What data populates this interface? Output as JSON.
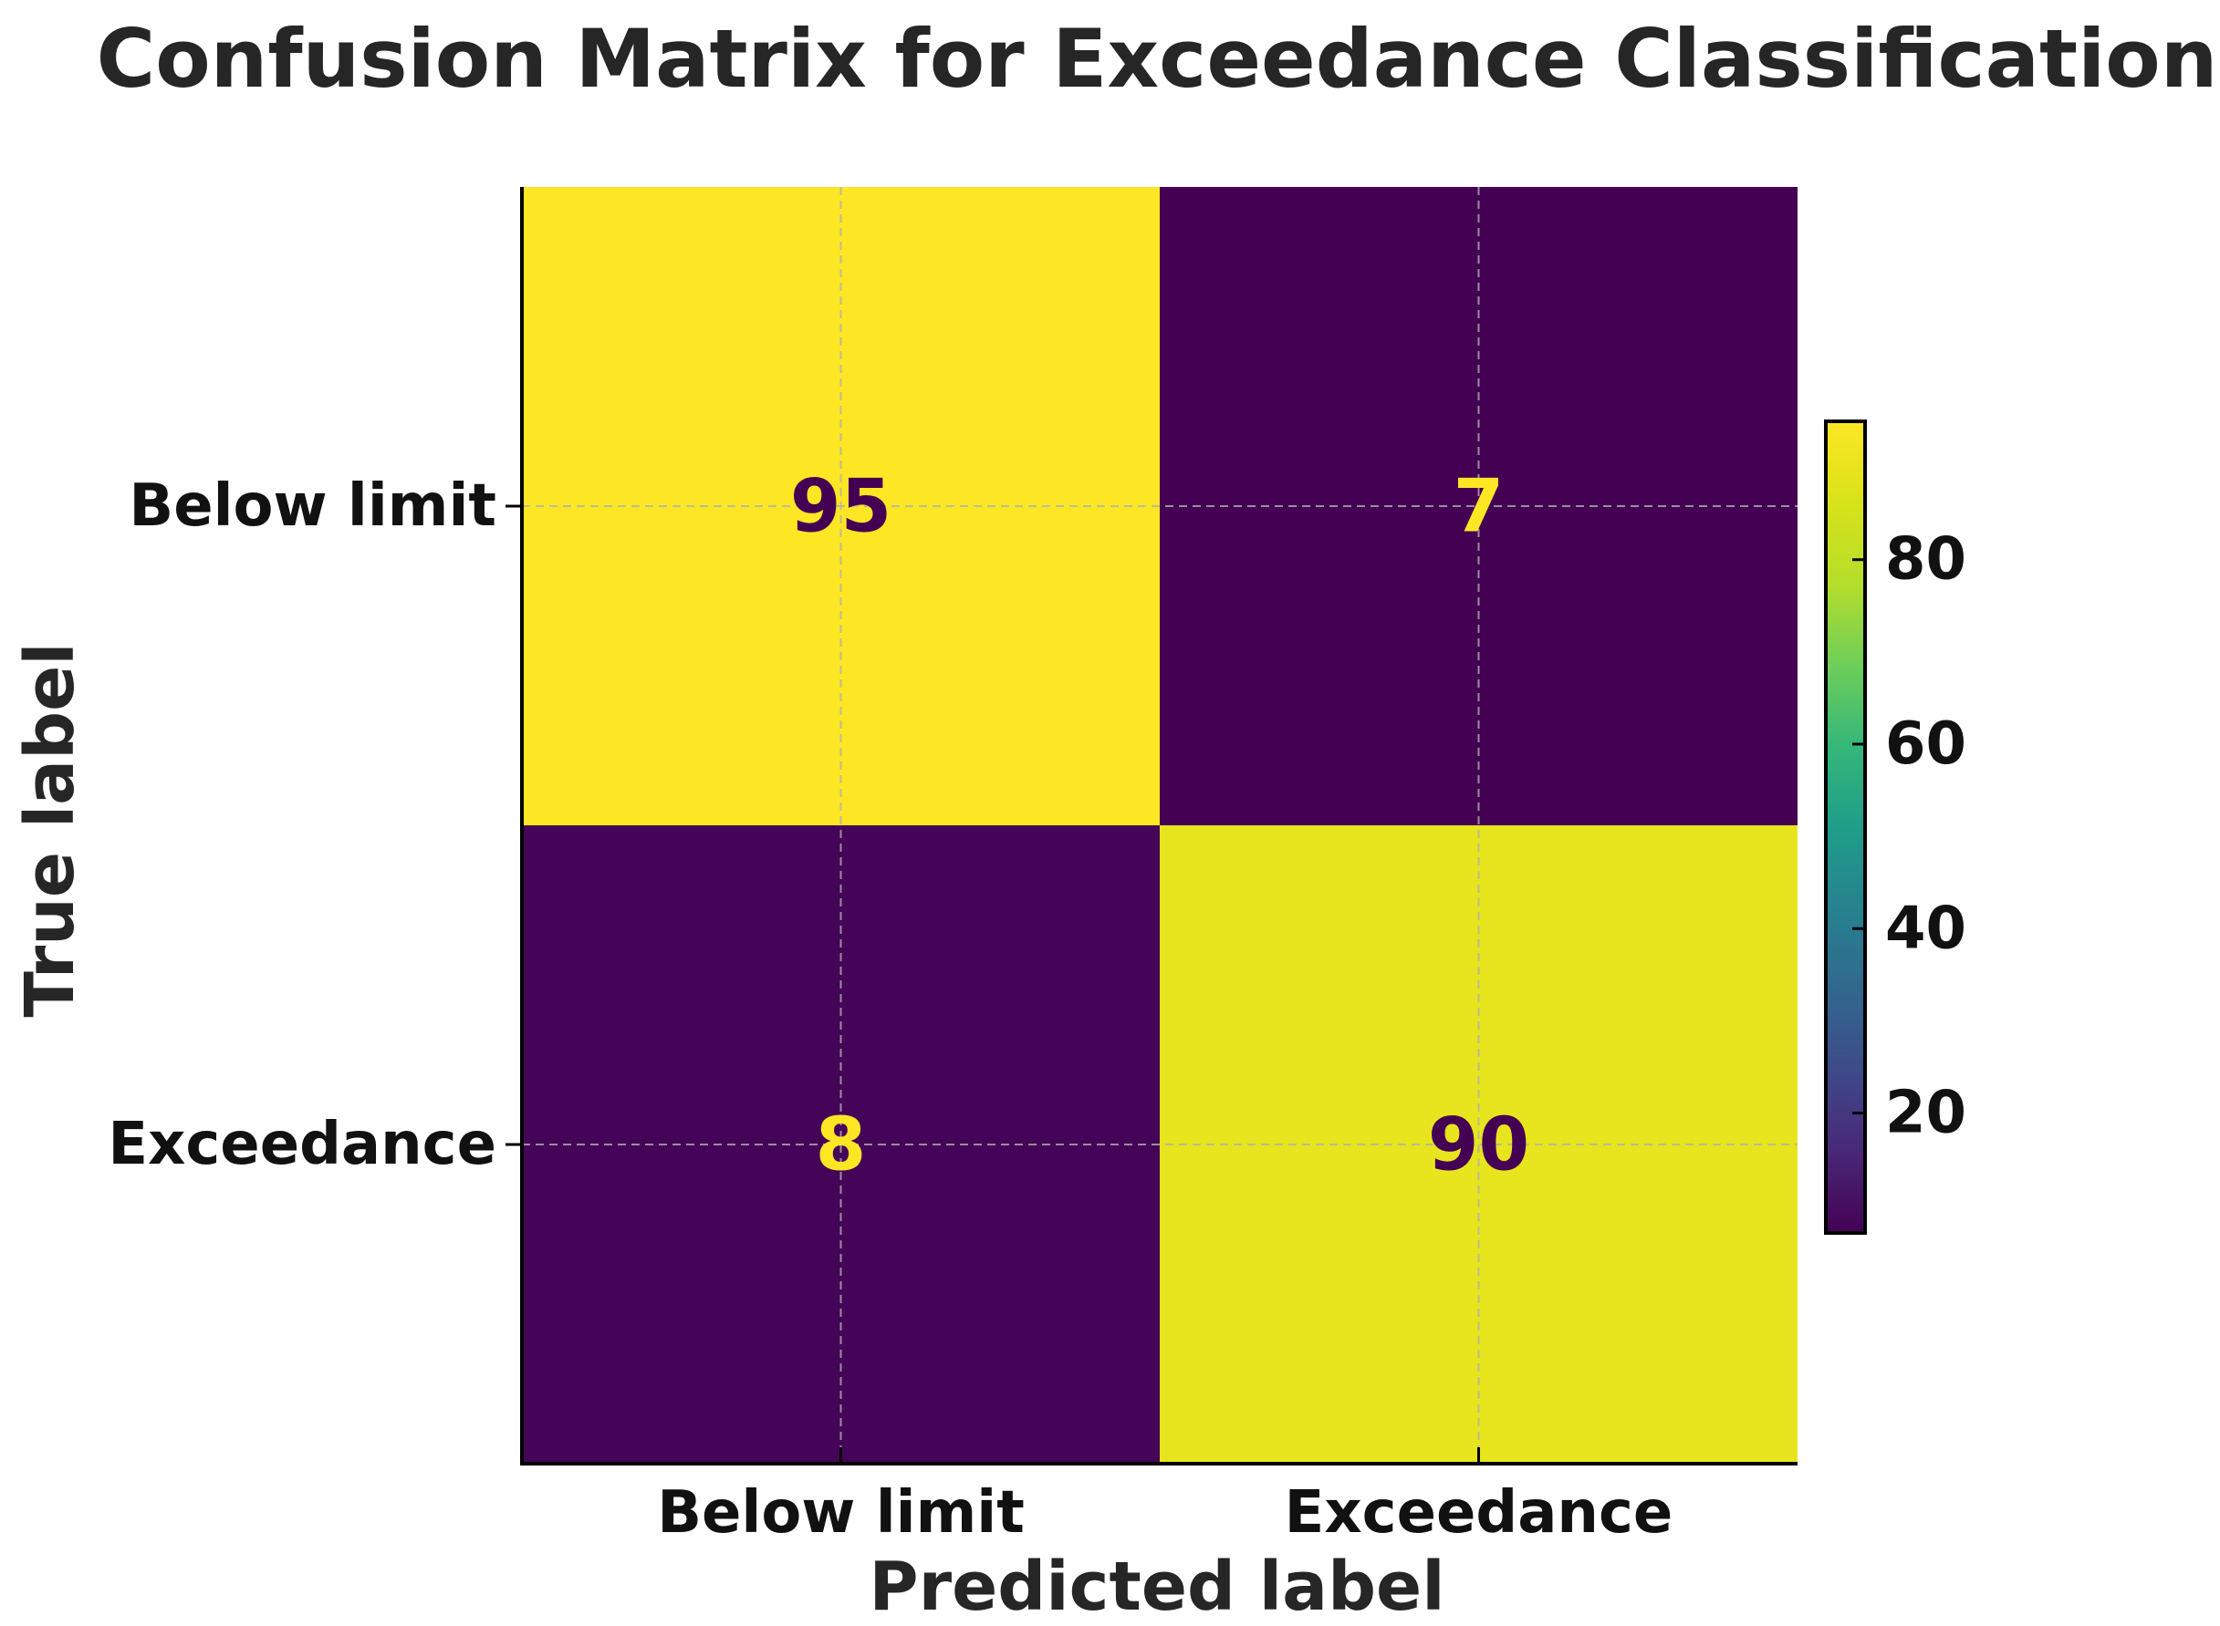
{
  "chart_data": {
    "type": "heatmap",
    "title": "Confusion Matrix for Exceedance Classification",
    "xlabel": "Predicted label",
    "ylabel": "True label",
    "x_categories": [
      "Below limit",
      "Exceedance"
    ],
    "y_categories": [
      "Below limit",
      "Exceedance"
    ],
    "values": [
      [
        95,
        7
      ],
      [
        8,
        90
      ]
    ],
    "colormap": "viridis",
    "colorbar": {
      "ticks": [
        20,
        40,
        60,
        80
      ],
      "tick_labels": [
        "20",
        "40",
        "60",
        "80"
      ],
      "range": [
        7,
        95
      ]
    },
    "grid": true,
    "text_colors": {
      "on_dark": "#fde725",
      "on_light": "#440154"
    }
  }
}
